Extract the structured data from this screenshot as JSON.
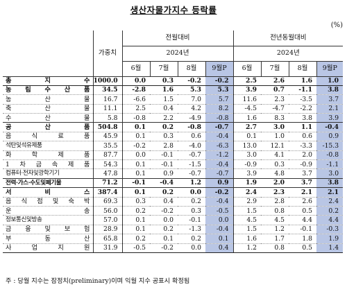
{
  "title": "생산자물가지수 등락률",
  "unit": "(%)",
  "header": {
    "weight_label": "가중치",
    "mom_label": "전월대비",
    "yoy_label": "전년동월대비",
    "year_label": "2024년",
    "months": [
      "6월",
      "7월",
      "8월",
      "9월P"
    ]
  },
  "rows": [
    {
      "label": "총 지 수",
      "weight": "1000.0",
      "mom": [
        "0.0",
        "0.3",
        "-0.2",
        "-0.2"
      ],
      "yoy": [
        "2.5",
        "2.6",
        "1.6",
        "1.0"
      ]
    },
    {
      "label": "농 림 수 산 품",
      "weight": "34.5",
      "mom": [
        "-2.8",
        "1.6",
        "5.3",
        "5.3"
      ],
      "yoy": [
        "3.9",
        "0.7",
        "-1.1",
        "3.8"
      ]
    },
    {
      "label": "농 산 물",
      "weight": "16.7",
      "mom": [
        "-6.6",
        "1.5",
        "7.0",
        "5.7"
      ],
      "yoy": [
        "11.6",
        "2.3",
        "-3.5",
        "3.7"
      ]
    },
    {
      "label": "축 산 물",
      "weight": "11.1",
      "mom": [
        "2.5",
        "0.4",
        "4.2",
        "8.2"
      ],
      "yoy": [
        "-4.5",
        "-4.7",
        "-2.2",
        "2.1"
      ]
    },
    {
      "label": "수 산 물",
      "weight": "5.8",
      "mom": [
        "-0.8",
        "2.2",
        "-4.9",
        "-0.8"
      ],
      "yoy": [
        "1.6",
        "8.3",
        "3.8",
        "3.9"
      ]
    },
    {
      "label": "공 산 품",
      "weight": "504.8",
      "mom": [
        "0.1",
        "0.2",
        "-0.8",
        "-0.7"
      ],
      "yoy": [
        "2.7",
        "3.0",
        "1.1",
        "-0.4"
      ]
    },
    {
      "label": "음 식 료 품",
      "weight": "45.9",
      "mom": [
        "0.1",
        "0.3",
        "0.6",
        "-0.4"
      ],
      "yoy": [
        "0.1",
        "1.0",
        "0.6",
        "0.9"
      ]
    },
    {
      "label": "석탄및석유제품",
      "weight": "35.5",
      "mom": [
        "-0.2",
        "2.8",
        "-4.0",
        "-6.3"
      ],
      "yoy": [
        "13.0",
        "12.1",
        "-3.3",
        "-15.3"
      ]
    },
    {
      "label": "화 학 제 품",
      "weight": "87.7",
      "mom": [
        "0.0",
        "-0.1",
        "-0.7",
        "-1.2"
      ],
      "yoy": [
        "3.0",
        "4.1",
        "2.0",
        "-0.8"
      ]
    },
    {
      "label": "1 차 금 속 제 품",
      "weight": "54.3",
      "mom": [
        "0.1",
        "-0.1",
        "-1.5",
        "-0.4"
      ],
      "yoy": [
        "-0.9",
        "0.3",
        "-0.9",
        "-1.1"
      ]
    },
    {
      "label": "컴퓨터·전자및광학기기",
      "weight": "47.8",
      "mom": [
        "0.1",
        "0.9",
        "-0.7",
        "-0.7"
      ],
      "yoy": [
        "3.9",
        "4.8",
        "3.7",
        "3.0"
      ]
    },
    {
      "label": "전력·가스·수도및폐기물",
      "weight": "71.2",
      "mom": [
        "-0.1",
        "-0.4",
        "1.2",
        "0.9"
      ],
      "yoy": [
        "1.9",
        "2.0",
        "3.7",
        "3.8"
      ]
    },
    {
      "label": "서 비 스",
      "weight": "387.4",
      "mom": [
        "0.1",
        "0.2",
        "0.0",
        "-0.2"
      ],
      "yoy": [
        "2.4",
        "2.3",
        "2.1",
        "2.1"
      ]
    },
    {
      "label": "음 식 점 및 숙 박",
      "weight": "69.3",
      "mom": [
        "0.3",
        "0.4",
        "0.2",
        "-0.4"
      ],
      "yoy": [
        "2.9",
        "2.8",
        "2.6",
        "2.4"
      ]
    },
    {
      "label": "운 송",
      "weight": "56.0",
      "mom": [
        "0.2",
        "-0.2",
        "0.3",
        "-0.5"
      ],
      "yoy": [
        "1.5",
        "0.8",
        "0.5",
        "0.2"
      ]
    },
    {
      "label": "정보통신및방송",
      "weight": "57.0",
      "mom": [
        "0.1",
        "0.0",
        "-0.1",
        "0.0"
      ],
      "yoy": [
        "4.5",
        "4.5",
        "4.4",
        "4.4"
      ]
    },
    {
      "label": "금 융 및 보 험",
      "weight": "28.9",
      "mom": [
        "0.1",
        "0.2",
        "-1.3",
        "-0.4"
      ],
      "yoy": [
        "1.5",
        "1.2",
        "-0.1",
        "-0.3"
      ]
    },
    {
      "label": "부 동 산",
      "weight": "65.8",
      "mom": [
        "0.2",
        "0.1",
        "0.2",
        "0.1"
      ],
      "yoy": [
        "1.6",
        "1.7",
        "1.8",
        "1.9"
      ]
    },
    {
      "label": "사 업 지 원",
      "weight": "31.9",
      "mom": [
        "-0.5",
        "-0.2",
        "0.0",
        "0.4"
      ],
      "yoy": [
        "1.2",
        "0.8",
        "0.5",
        "1.4"
      ]
    }
  ],
  "note": "주 : 당월 지수는 잠정치(preliminary)이며 익월 지수 공표시 확정됨"
}
